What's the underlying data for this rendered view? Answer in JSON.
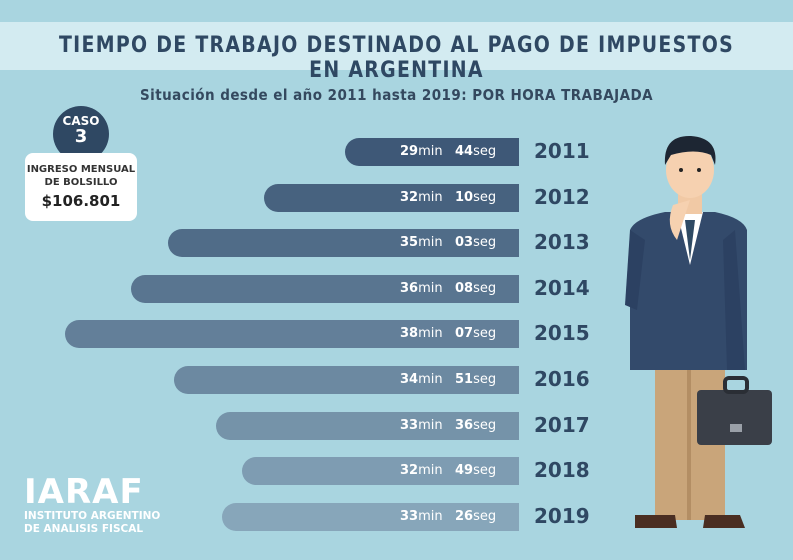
{
  "title": "TIEMPO DE TRABAJO DESTINADO AL PAGO DE IMPUESTOS EN ARGENTINA",
  "subtitle": "Situación desde el año 2011 hasta 2019: POR HORA TRABAJADA",
  "caso": {
    "label": "CASO",
    "number": "3"
  },
  "ingreso": {
    "label": "INGRESO MENSUAL DE BOLSILLO",
    "value": "$106.801"
  },
  "logo": {
    "name": "IARAF",
    "line1": "INSTITUTO ARGENTINO",
    "line2": "DE ANALISIS FISCAL"
  },
  "colors": {
    "background": "#a9d5e0",
    "bar_dark": "#3e5877",
    "bar_light": "#87a6ba",
    "text_dark": "#2f4863"
  },
  "chart_data": {
    "type": "bar",
    "orientation": "horizontal",
    "title": "TIEMPO DE TRABAJO DESTINADO AL PAGO DE IMPUESTOS EN ARGENTINA",
    "categories": [
      "2011",
      "2012",
      "2013",
      "2014",
      "2015",
      "2016",
      "2017",
      "2018",
      "2019"
    ],
    "values_seconds": [
      1784,
      1930,
      2103,
      2168,
      2287,
      2091,
      2016,
      1969,
      2006
    ],
    "labels": [
      {
        "min": "29",
        "sec": "44"
      },
      {
        "min": "32",
        "sec": "10"
      },
      {
        "min": "35",
        "sec": "03"
      },
      {
        "min": "36",
        "sec": "08"
      },
      {
        "min": "38",
        "sec": "07"
      },
      {
        "min": "34",
        "sec": "51"
      },
      {
        "min": "33",
        "sec": "36"
      },
      {
        "min": "32",
        "sec": "49"
      },
      {
        "min": "33",
        "sec": "26"
      }
    ],
    "unit_min": "min",
    "unit_sec": "seg"
  }
}
